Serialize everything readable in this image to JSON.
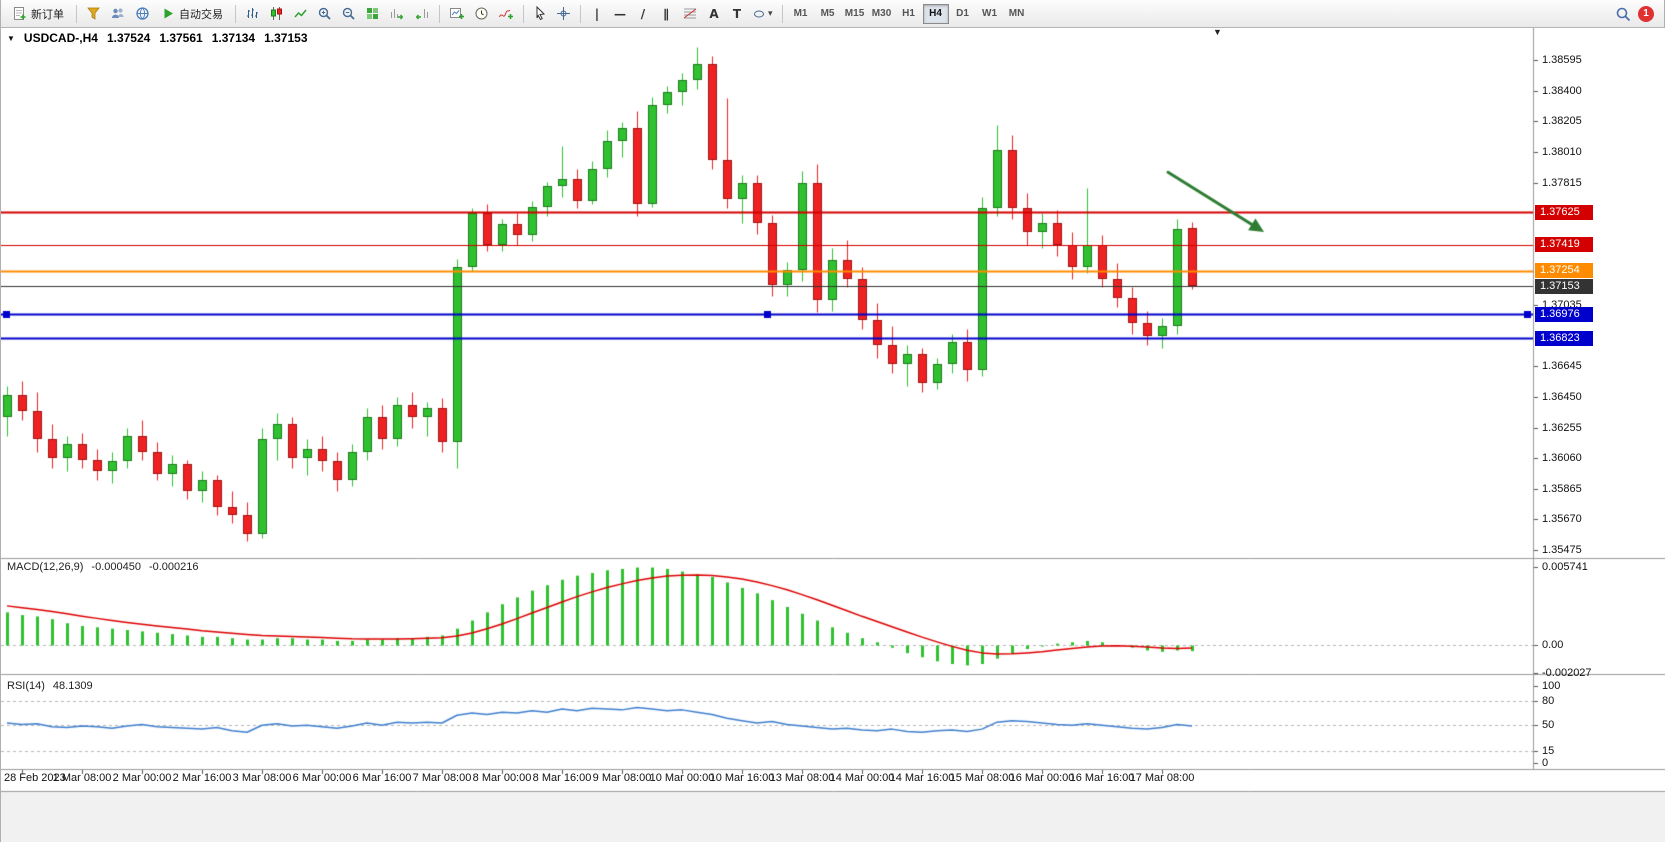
{
  "toolbar": {
    "new_order_label": "新订单",
    "autotrading_label": "自动交易",
    "timeframes": [
      "M1",
      "M5",
      "M15",
      "M30",
      "H1",
      "H4",
      "D1",
      "W1",
      "MN"
    ],
    "active_timeframe": "H4",
    "tools": {
      "vertical_line": "|",
      "horizontal_line": "—",
      "trendline": "/",
      "channel": "∥",
      "text_tool": "A",
      "label_tool": "T"
    },
    "notification_count": "1"
  },
  "icons": {
    "symbol_dropdown": "▼",
    "shift_marker": "▼",
    "shapes_caret": "▾"
  },
  "chart_window": {
    "symbol_period": "USDCAD-,H4",
    "open": "1.37524",
    "high": "1.37561",
    "low": "1.37134",
    "close": "1.37153"
  },
  "indicators": {
    "macd": {
      "label": "MACD(12,26,9)",
      "value1": "-0.000450",
      "value2": "-0.000216"
    },
    "rsi": {
      "label": "RSI(14)",
      "value": "48.1309"
    }
  },
  "colors": {
    "candle_up": "#2fc12f",
    "candle_up_border": "#1d7a1d",
    "candle_down": "#ee2222",
    "candle_down_border": "#a21212",
    "macd_hist": "#2fc12f",
    "macd_signal": "#dd0000",
    "rsi_line": "#3f7fce",
    "arrow": "#2e7d32"
  },
  "chart_data": {
    "type": "candlestick",
    "symbol": "USDCAD",
    "period": "H4",
    "ylim": [
      1.3544,
      1.3871
    ],
    "price_ticks": [
      "1.38595",
      "1.38400",
      "1.38205",
      "1.38010",
      "1.37815",
      "1.37035",
      "1.36645",
      "1.36450",
      "1.36255",
      "1.36060",
      "1.35865",
      "1.35670",
      "1.35475"
    ],
    "price_lines": [
      {
        "price": 1.37625,
        "label": "1.37625",
        "color": "#d40000",
        "width": 2
      },
      {
        "price": 1.37419,
        "label": "1.37419",
        "color": "#d40000",
        "width": 1
      },
      {
        "price": 1.37254,
        "label": "1.37254",
        "color": "#ff8c00",
        "width": 2
      },
      {
        "price": 1.37153,
        "label": "1.37153",
        "color": "#333333",
        "width": 1
      },
      {
        "price": 1.36976,
        "label": "1.36976",
        "color": "#0000cc",
        "width": 2,
        "selected": true
      },
      {
        "price": 1.36823,
        "label": "1.36823",
        "color": "#0000cc",
        "width": 2
      }
    ],
    "time_labels": [
      "28 Feb 2023",
      "1 Mar 08:00",
      "2 Mar 00:00",
      "2 Mar 16:00",
      "3 Mar 08:00",
      "6 Mar 00:00",
      "6 Mar 16:00",
      "7 Mar 08:00",
      "8 Mar 00:00",
      "8 Mar 16:00",
      "9 Mar 08:00",
      "10 Mar 00:00",
      "10 Mar 16:00",
      "13 Mar 08:00",
      "14 Mar 00:00",
      "14 Mar 16:00",
      "15 Mar 08:00",
      "16 Mar 00:00",
      "16 Mar 16:00",
      "17 Mar 08:00"
    ],
    "tick_candles": [
      1,
      5,
      9,
      13,
      17,
      21,
      25,
      29,
      33,
      37,
      41,
      45,
      49,
      53,
      57,
      61,
      65,
      69,
      73,
      77
    ],
    "ohlc": [
      [
        1.3632,
        1.3652,
        1.362,
        1.3646
      ],
      [
        1.3646,
        1.3655,
        1.363,
        1.3636
      ],
      [
        1.3636,
        1.3648,
        1.361,
        1.3618
      ],
      [
        1.3618,
        1.3628,
        1.36,
        1.3606
      ],
      [
        1.3606,
        1.362,
        1.3598,
        1.3615
      ],
      [
        1.3615,
        1.3622,
        1.36,
        1.3605
      ],
      [
        1.3605,
        1.3612,
        1.3592,
        1.3598
      ],
      [
        1.3598,
        1.361,
        1.359,
        1.3604
      ],
      [
        1.3604,
        1.3625,
        1.36,
        1.362
      ],
      [
        1.362,
        1.363,
        1.3605,
        1.361
      ],
      [
        1.361,
        1.3616,
        1.3592,
        1.3596
      ],
      [
        1.3596,
        1.3608,
        1.3588,
        1.3602
      ],
      [
        1.3602,
        1.3605,
        1.358,
        1.3585
      ],
      [
        1.3585,
        1.3598,
        1.3578,
        1.3592
      ],
      [
        1.3592,
        1.3595,
        1.357,
        1.3575
      ],
      [
        1.3575,
        1.3585,
        1.3565,
        1.357
      ],
      [
        1.357,
        1.3578,
        1.3553,
        1.3558
      ],
      [
        1.3558,
        1.3625,
        1.3555,
        1.3618
      ],
      [
        1.3618,
        1.3635,
        1.3605,
        1.3628
      ],
      [
        1.3628,
        1.3632,
        1.36,
        1.3606
      ],
      [
        1.3606,
        1.3618,
        1.3595,
        1.3612
      ],
      [
        1.3612,
        1.362,
        1.3598,
        1.3604
      ],
      [
        1.3604,
        1.361,
        1.3585,
        1.3592
      ],
      [
        1.3592,
        1.3615,
        1.3588,
        1.361
      ],
      [
        1.361,
        1.3638,
        1.3605,
        1.3632
      ],
      [
        1.3632,
        1.364,
        1.3612,
        1.3618
      ],
      [
        1.3618,
        1.3645,
        1.3614,
        1.364
      ],
      [
        1.364,
        1.3648,
        1.3625,
        1.3632
      ],
      [
        1.3632,
        1.3642,
        1.362,
        1.3638
      ],
      [
        1.3638,
        1.3644,
        1.361,
        1.3616
      ],
      [
        1.3616,
        1.3733,
        1.36,
        1.3728
      ],
      [
        1.3728,
        1.3765,
        1.3725,
        1.3762
      ],
      [
        1.3762,
        1.3768,
        1.3738,
        1.3742
      ],
      [
        1.3742,
        1.3758,
        1.3738,
        1.3755
      ],
      [
        1.3755,
        1.3762,
        1.3742,
        1.3748
      ],
      [
        1.3748,
        1.377,
        1.3744,
        1.3766
      ],
      [
        1.3766,
        1.3782,
        1.376,
        1.3779
      ],
      [
        1.3779,
        1.3805,
        1.3772,
        1.3784
      ],
      [
        1.3784,
        1.379,
        1.3765,
        1.377
      ],
      [
        1.377,
        1.3795,
        1.3768,
        1.379
      ],
      [
        1.379,
        1.3815,
        1.3785,
        1.3808
      ],
      [
        1.3808,
        1.382,
        1.3798,
        1.3816
      ],
      [
        1.3816,
        1.3827,
        1.376,
        1.3768
      ],
      [
        1.3768,
        1.3836,
        1.3766,
        1.3831
      ],
      [
        1.3831,
        1.3843,
        1.3826,
        1.3839
      ],
      [
        1.3839,
        1.3851,
        1.3831,
        1.3847
      ],
      [
        1.3847,
        1.3868,
        1.3841,
        1.3857
      ],
      [
        1.3857,
        1.3862,
        1.379,
        1.3796
      ],
      [
        1.3796,
        1.3835,
        1.3765,
        1.3771
      ],
      [
        1.3771,
        1.3786,
        1.3756,
        1.3781
      ],
      [
        1.3781,
        1.3786,
        1.3749,
        1.3756
      ],
      [
        1.3756,
        1.3761,
        1.3709,
        1.3716
      ],
      [
        1.3716,
        1.3731,
        1.3709,
        1.3726
      ],
      [
        1.3726,
        1.3789,
        1.3719,
        1.3781
      ],
      [
        1.3781,
        1.3793,
        1.3699,
        1.3707
      ],
      [
        1.3707,
        1.374,
        1.37,
        1.3732
      ],
      [
        1.3732,
        1.3745,
        1.3715,
        1.372
      ],
      [
        1.372,
        1.3728,
        1.3688,
        1.3694
      ],
      [
        1.3694,
        1.3705,
        1.367,
        1.3678
      ],
      [
        1.3678,
        1.369,
        1.366,
        1.3666
      ],
      [
        1.3666,
        1.3678,
        1.3652,
        1.3672
      ],
      [
        1.3672,
        1.3676,
        1.3648,
        1.3654
      ],
      [
        1.3654,
        1.367,
        1.365,
        1.3666
      ],
      [
        1.3666,
        1.3685,
        1.366,
        1.368
      ],
      [
        1.368,
        1.3688,
        1.3655,
        1.3662
      ],
      [
        1.3662,
        1.3772,
        1.3658,
        1.3765
      ],
      [
        1.3765,
        1.3818,
        1.376,
        1.3802
      ],
      [
        1.3802,
        1.3812,
        1.3758,
        1.3765
      ],
      [
        1.3765,
        1.3775,
        1.3742,
        1.375
      ],
      [
        1.375,
        1.3762,
        1.374,
        1.3756
      ],
      [
        1.3756,
        1.3764,
        1.3735,
        1.3742
      ],
      [
        1.3742,
        1.375,
        1.372,
        1.3728
      ],
      [
        1.3728,
        1.3778,
        1.3724,
        1.3742
      ],
      [
        1.3742,
        1.3748,
        1.3715,
        1.372
      ],
      [
        1.372,
        1.373,
        1.3702,
        1.3708
      ],
      [
        1.3708,
        1.3715,
        1.3685,
        1.3692
      ],
      [
        1.3692,
        1.37,
        1.3678,
        1.3684
      ],
      [
        1.3684,
        1.3695,
        1.3676,
        1.369
      ],
      [
        1.369,
        1.3758,
        1.3685,
        1.3752
      ],
      [
        1.37524,
        1.37561,
        1.37134,
        1.37153
      ]
    ],
    "macd": {
      "axis_labels": [
        "0.005741",
        "0.00",
        "-0.002027"
      ],
      "hist": [
        0.0024,
        0.0022,
        0.0021,
        0.0019,
        0.0016,
        0.0014,
        0.0013,
        0.0012,
        0.0011,
        0.001,
        0.0009,
        0.0008,
        0.0007,
        0.0006,
        0.0006,
        0.0005,
        0.0004,
        0.0004,
        0.0005,
        0.0005,
        0.0004,
        0.0004,
        0.0003,
        0.0003,
        0.0004,
        0.0004,
        0.0005,
        0.0005,
        0.0006,
        0.0007,
        0.0012,
        0.0018,
        0.0024,
        0.003,
        0.0035,
        0.004,
        0.0044,
        0.0048,
        0.0051,
        0.0053,
        0.0055,
        0.0056,
        0.0057,
        0.0057,
        0.0056,
        0.0054,
        0.0052,
        0.005,
        0.0046,
        0.0042,
        0.0038,
        0.0033,
        0.0028,
        0.0023,
        0.0018,
        0.0013,
        0.0009,
        0.0005,
        0.0002,
        -0.0002,
        -0.0006,
        -0.0009,
        -0.0012,
        -0.0014,
        -0.0015,
        -0.0014,
        -0.001,
        -0.0006,
        -0.0003,
        -0.0001,
        0.0001,
        0.0002,
        0.0003,
        0.0002,
        0.0,
        -0.0002,
        -0.0004,
        -0.0005,
        -0.0004,
        -0.00045
      ],
      "signal": [
        0.00288,
        0.00274,
        0.00262,
        0.00247,
        0.0023,
        0.00212,
        0.00196,
        0.0018,
        0.00166,
        0.00153,
        0.0014,
        0.00128,
        0.00117,
        0.00105,
        0.00096,
        0.00087,
        0.00078,
        0.0007,
        0.00066,
        0.00063,
        0.00058,
        0.00055,
        0.0005,
        0.00046,
        0.00045,
        0.00044,
        0.00045,
        0.00046,
        0.00049,
        0.00053,
        0.00066,
        0.00089,
        0.00119,
        0.00155,
        0.00194,
        0.00236,
        0.00276,
        0.00317,
        0.00356,
        0.00391,
        0.00423,
        0.0045,
        0.00474,
        0.00493,
        0.00507,
        0.00513,
        0.00515,
        0.00512,
        0.00501,
        0.00485,
        0.00464,
        0.00437,
        0.00406,
        0.00371,
        0.00333,
        0.00292,
        0.00252,
        0.00211,
        0.00173,
        0.00134,
        0.00096,
        0.00058,
        0.00023,
        -0.0001,
        -0.00038,
        -0.00058,
        -0.00067,
        -0.00065,
        -0.00058,
        -0.00049,
        -0.00037,
        -0.00026,
        -0.00014,
        -8e-05,
        -6e-05,
        -9e-05,
        -0.00015,
        -0.00022,
        -0.00026,
        -0.000216
      ]
    },
    "rsi": {
      "axis_labels": [
        "100",
        "80",
        "50",
        "15",
        "0"
      ],
      "levels": [
        80,
        50,
        15
      ],
      "values": [
        52,
        50,
        51,
        47,
        46,
        48,
        47,
        45,
        48,
        50,
        47,
        46,
        45,
        44,
        46,
        42,
        40,
        49,
        51,
        48,
        49,
        47,
        45,
        48,
        52,
        49,
        53,
        52,
        53,
        52,
        62,
        65,
        63,
        66,
        65,
        68,
        66,
        70,
        68,
        71,
        70,
        69,
        72,
        70,
        68,
        69,
        66,
        63,
        58,
        55,
        52,
        54,
        50,
        48,
        46,
        44,
        45,
        43,
        42,
        44,
        41,
        40,
        42,
        43,
        41,
        44,
        53,
        55,
        54,
        52,
        50,
        49,
        51,
        49,
        47,
        45,
        44,
        46,
        50,
        48.13
      ]
    },
    "annotation_arrow": {
      "from_candle": 77.4,
      "from_price": 1.3788,
      "to_candle": 83.8,
      "to_price": 1.375,
      "color": "#2e7d32"
    }
  }
}
